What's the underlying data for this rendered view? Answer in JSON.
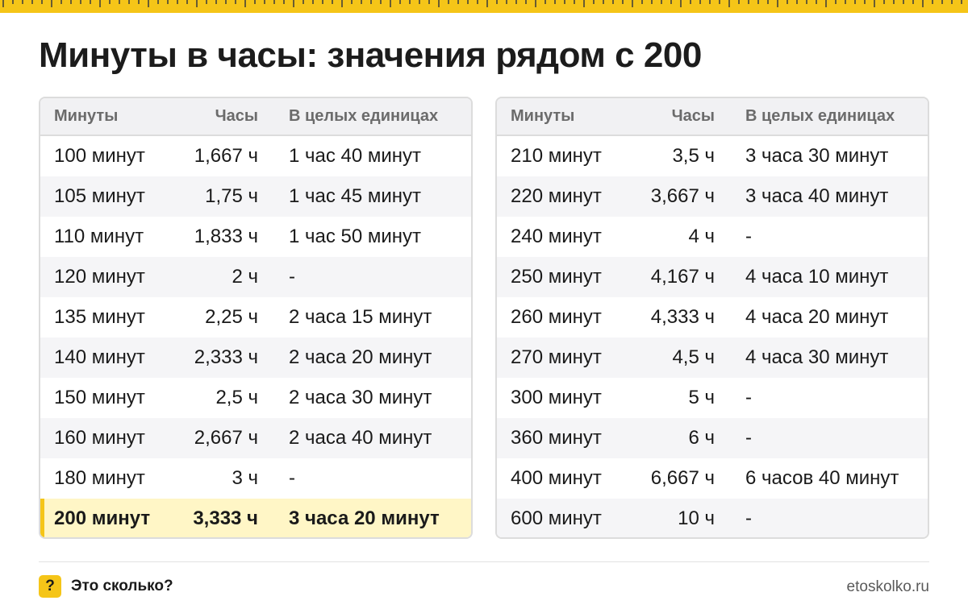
{
  "title": "Минуты в часы: значения рядом с 200",
  "headers": {
    "minutes": "Минуты",
    "hours": "Часы",
    "whole": "В целых единицах"
  },
  "left_table": [
    {
      "minutes": "100 минут",
      "hours": "1,667 ч",
      "whole": "1 час 40 минут"
    },
    {
      "minutes": "105 минут",
      "hours": "1,75 ч",
      "whole": "1 час 45 минут"
    },
    {
      "minutes": "110 минут",
      "hours": "1,833 ч",
      "whole": "1 час 50 минут"
    },
    {
      "minutes": "120 минут",
      "hours": "2 ч",
      "whole": "-"
    },
    {
      "minutes": "135 минут",
      "hours": "2,25 ч",
      "whole": "2 часа 15 минут"
    },
    {
      "minutes": "140 минут",
      "hours": "2,333 ч",
      "whole": "2 часа 20 минут"
    },
    {
      "minutes": "150 минут",
      "hours": "2,5 ч",
      "whole": "2 часа 30 минут"
    },
    {
      "minutes": "160 минут",
      "hours": "2,667 ч",
      "whole": "2 часа 40 минут"
    },
    {
      "minutes": "180 минут",
      "hours": "3 ч",
      "whole": "-"
    },
    {
      "minutes": "200 минут",
      "hours": "3,333 ч",
      "whole": "3 часа 20 минут"
    }
  ],
  "right_table": [
    {
      "minutes": "210 минут",
      "hours": "3,5 ч",
      "whole": "3 часа 30 минут"
    },
    {
      "minutes": "220 минут",
      "hours": "3,667 ч",
      "whole": "3 часа 40 минут"
    },
    {
      "minutes": "240 минут",
      "hours": "4 ч",
      "whole": "-"
    },
    {
      "minutes": "250 минут",
      "hours": "4,167 ч",
      "whole": "4 часа 10 минут"
    },
    {
      "minutes": "260 минут",
      "hours": "4,333 ч",
      "whole": "4 часа 20 минут"
    },
    {
      "minutes": "270 минут",
      "hours": "4,5 ч",
      "whole": "4 часа 30 минут"
    },
    {
      "minutes": "300 минут",
      "hours": "5 ч",
      "whole": "-"
    },
    {
      "minutes": "360 минут",
      "hours": "6 ч",
      "whole": "-"
    },
    {
      "minutes": "400 минут",
      "hours": "6,667 ч",
      "whole": "6 часов 40 минут"
    },
    {
      "minutes": "600 минут",
      "hours": "10 ч",
      "whole": "-"
    }
  ],
  "footer": {
    "badge": "?",
    "brand": "Это сколько?",
    "site": "etoskolko.ru"
  },
  "colors": {
    "accent": "#f5c518",
    "highlight_row": "#fff6c6"
  }
}
